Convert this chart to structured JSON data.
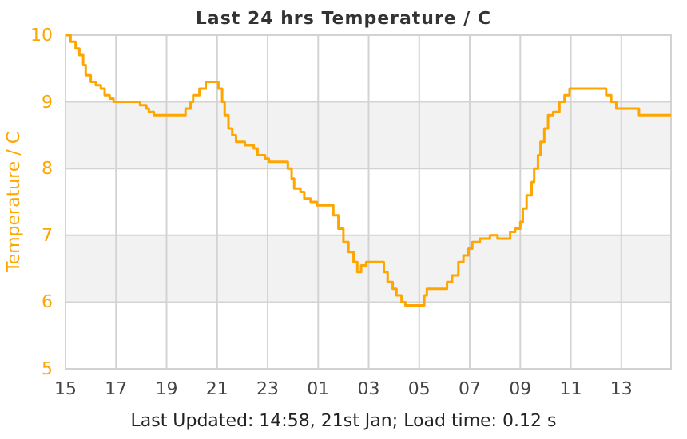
{
  "chart_data": {
    "type": "step",
    "title": "Last 24 hrs Temperature / C",
    "ylabel": "Temperature / C",
    "annotations": [
      "Last Updated: 14:58, 21st Jan; Load time: 0.12 s"
    ],
    "x": [
      "--01-20T15:00",
      "--01-20T15:12",
      "--01-20T15:24",
      "--01-20T15:33",
      "--01-20T15:42",
      "--01-20T15:48",
      "--01-20T16:00",
      "--01-20T16:12",
      "--01-20T16:24",
      "--01-20T16:33",
      "--01-20T16:45",
      "--01-20T16:54",
      "--01-20T17:57",
      "--01-20T18:12",
      "--01-20T18:18",
      "--01-20T18:30",
      "--01-20T19:42",
      "--01-20T19:45",
      "--01-20T19:57",
      "--01-20T20:03",
      "--01-20T20:18",
      "--01-20T20:33",
      "--01-20T20:57",
      "--01-20T21:03",
      "--01-20T21:12",
      "--01-20T21:18",
      "--01-20T21:27",
      "--01-20T21:36",
      "--01-20T21:45",
      "--01-20T22:06",
      "--01-20T22:27",
      "--01-20T22:36",
      "--01-20T22:54",
      "--01-20T23:03",
      "--01-20T23:33",
      "--01-20T23:48",
      "--01-20T23:57",
      "--01-21T00:03",
      "--01-21T00:18",
      "--01-21T00:27",
      "--01-21T00:42",
      "--01-21T00:57",
      "--01-21T01:27",
      "--01-21T01:36",
      "--01-21T01:48",
      "--01-21T02:00",
      "--01-21T02:12",
      "--01-21T02:24",
      "--01-21T02:33",
      "--01-21T02:42",
      "--01-21T02:54",
      "--01-21T03:27",
      "--01-21T03:36",
      "--01-21T03:45",
      "--01-21T03:57",
      "--01-21T04:06",
      "--01-21T04:18",
      "--01-21T04:27",
      "--01-21T05:06",
      "--01-21T05:12",
      "--01-21T05:18",
      "--01-21T05:57",
      "--01-21T06:06",
      "--01-21T06:18",
      "--01-21T06:33",
      "--01-21T06:45",
      "--01-21T06:57",
      "--01-21T07:06",
      "--01-21T07:24",
      "--01-21T07:48",
      "--01-21T08:06",
      "--01-21T08:36",
      "--01-21T08:48",
      "--01-21T09:00",
      "--01-21T09:06",
      "--01-21T09:15",
      "--01-21T09:27",
      "--01-21T09:33",
      "--01-21T09:42",
      "--01-21T09:48",
      "--01-21T09:57",
      "--01-21T10:06",
      "--01-21T10:18",
      "--01-21T10:33",
      "--01-21T10:45",
      "--01-21T10:57",
      "--01-21T12:12",
      "--01-21T12:24",
      "--01-21T12:36",
      "--01-21T12:48",
      "--01-21T13:27",
      "--01-21T13:42",
      "--01-21T14:58"
    ],
    "series": [
      {
        "color": "#ffa500",
        "values": [
          10.0,
          9.9,
          9.8,
          9.7,
          9.55,
          9.4,
          9.3,
          9.25,
          9.2,
          9.1,
          9.05,
          9.0,
          8.95,
          8.9,
          8.85,
          8.8,
          8.8,
          8.9,
          9.0,
          9.1,
          9.2,
          9.3,
          9.3,
          9.2,
          9.0,
          8.8,
          8.6,
          8.5,
          8.4,
          8.35,
          8.3,
          8.2,
          8.15,
          8.1,
          8.1,
          8.0,
          7.85,
          7.7,
          7.65,
          7.55,
          7.5,
          7.45,
          7.45,
          7.3,
          7.1,
          6.9,
          6.75,
          6.6,
          6.45,
          6.55,
          6.6,
          6.6,
          6.45,
          6.3,
          6.2,
          6.1,
          6.0,
          5.95,
          5.95,
          6.1,
          6.2,
          6.2,
          6.3,
          6.4,
          6.6,
          6.7,
          6.8,
          6.9,
          6.95,
          7.0,
          6.95,
          7.05,
          7.1,
          7.2,
          7.4,
          7.6,
          7.8,
          8.0,
          8.2,
          8.4,
          8.6,
          8.8,
          8.85,
          9.0,
          9.1,
          9.2,
          9.2,
          9.1,
          9.0,
          8.9,
          8.9,
          8.8,
          8.8
        ]
      }
    ],
    "xlim": [
      "--01-20T15:00",
      "--01-21T14:58"
    ],
    "ylim": [
      5,
      10
    ],
    "xticks": [
      {
        "value": "--01-20T15:00",
        "label": "15"
      },
      {
        "value": "--01-20T17:00",
        "label": "17"
      },
      {
        "value": "--01-20T19:00",
        "label": "19"
      },
      {
        "value": "--01-20T21:00",
        "label": "21"
      },
      {
        "value": "--01-20T23:00",
        "label": "23"
      },
      {
        "value": "--01-21T01:00",
        "label": "01"
      },
      {
        "value": "--01-21T03:00",
        "label": "03"
      },
      {
        "value": "--01-21T05:00",
        "label": "05"
      },
      {
        "value": "--01-21T07:00",
        "label": "07"
      },
      {
        "value": "--01-21T09:00",
        "label": "09"
      },
      {
        "value": "--01-21T11:00",
        "label": "11"
      },
      {
        "value": "--01-21T13:00",
        "label": "13"
      }
    ],
    "yticks": [
      5,
      6,
      7,
      8,
      9,
      10
    ],
    "bands": [
      {
        "axis": "y",
        "from": 6,
        "to": 7,
        "color": "#f2f2f2"
      },
      {
        "axis": "y",
        "from": 8,
        "to": 9,
        "color": "#f2f2f2"
      }
    ],
    "grid": true,
    "line_style": "solid"
  }
}
